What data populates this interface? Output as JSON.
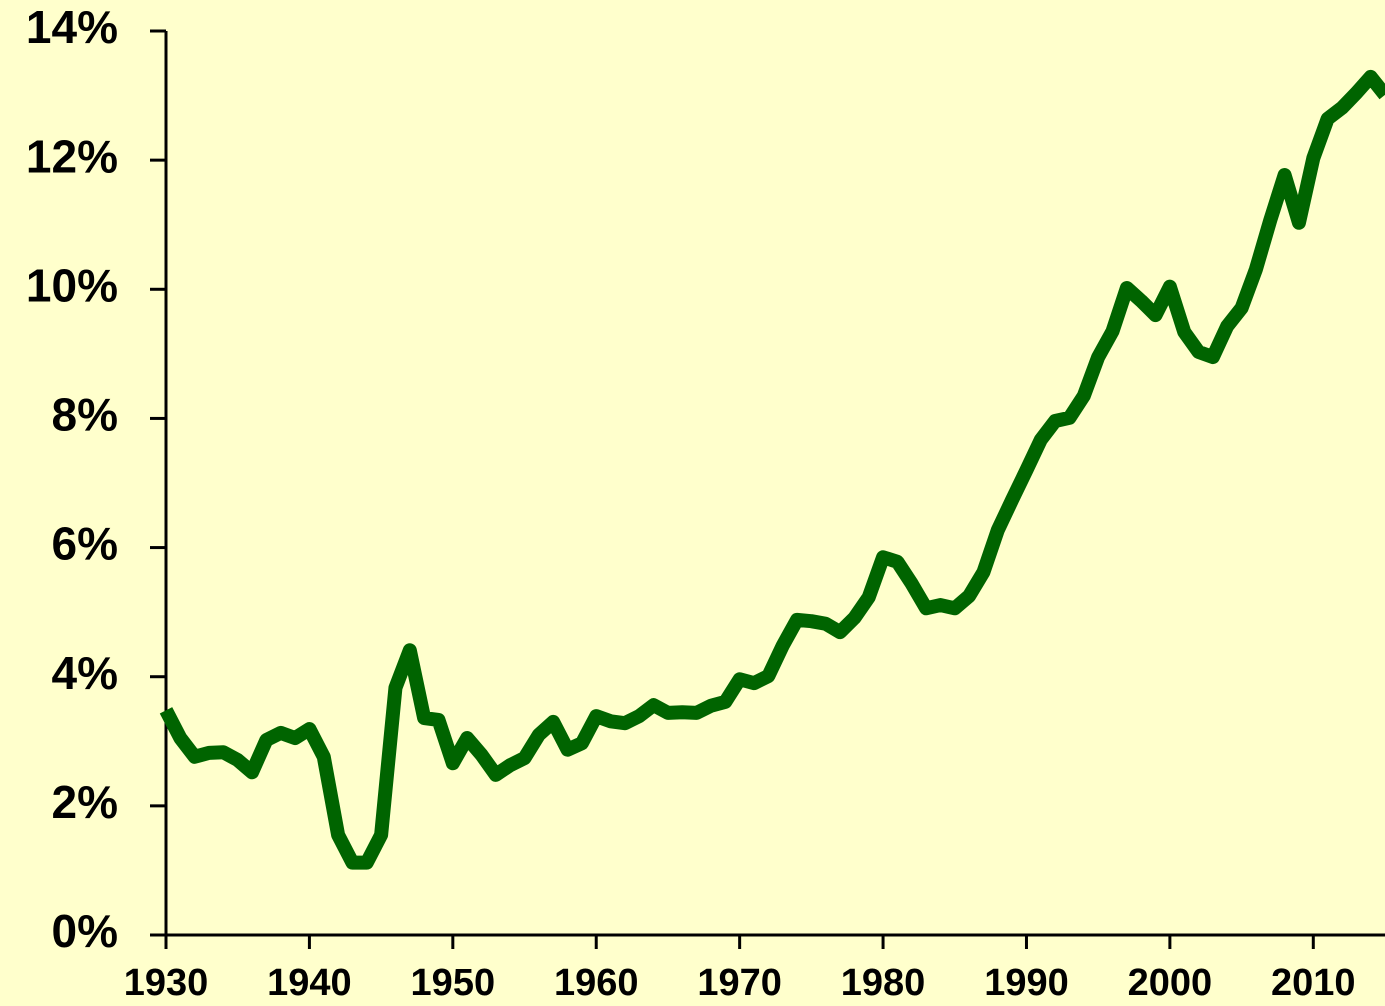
{
  "chart_data": {
    "type": "line",
    "x": [
      1930,
      1931,
      1932,
      1933,
      1934,
      1935,
      1936,
      1937,
      1938,
      1939,
      1940,
      1941,
      1942,
      1943,
      1944,
      1945,
      1946,
      1947,
      1948,
      1949,
      1950,
      1951,
      1952,
      1953,
      1954,
      1955,
      1956,
      1957,
      1958,
      1959,
      1960,
      1961,
      1962,
      1963,
      1964,
      1965,
      1966,
      1967,
      1968,
      1969,
      1970,
      1971,
      1972,
      1973,
      1974,
      1975,
      1976,
      1977,
      1978,
      1979,
      1980,
      1981,
      1982,
      1983,
      1984,
      1985,
      1986,
      1987,
      1988,
      1989,
      1990,
      1991,
      1992,
      1993,
      1994,
      1995,
      1996,
      1997,
      1998,
      1999,
      2000,
      2001,
      2002,
      2003,
      2004,
      2005,
      2006,
      2007,
      2008,
      2009,
      2010,
      2011,
      2012,
      2013,
      2014,
      2015
    ],
    "series": [
      {
        "color": "#006400",
        "values": [
          3.48,
          3.05,
          2.76,
          2.82,
          2.83,
          2.71,
          2.52,
          3.02,
          3.13,
          3.05,
          3.19,
          2.76,
          1.55,
          1.12,
          1.12,
          1.55,
          3.83,
          4.41,
          3.36,
          3.33,
          2.66,
          3.05,
          2.79,
          2.48,
          2.63,
          2.74,
          3.1,
          3.3,
          2.87,
          2.97,
          3.39,
          3.31,
          3.28,
          3.39,
          3.56,
          3.44,
          3.45,
          3.44,
          3.55,
          3.61,
          3.96,
          3.9,
          4.01,
          4.48,
          4.88,
          4.86,
          4.82,
          4.69,
          4.91,
          5.23,
          5.85,
          5.78,
          5.44,
          5.06,
          5.11,
          5.06,
          5.25,
          5.62,
          6.27,
          6.74,
          7.2,
          7.67,
          7.96,
          8.01,
          8.35,
          8.95,
          9.35,
          10.02,
          9.82,
          9.6,
          10.04,
          9.34,
          9.03,
          8.95,
          9.43,
          9.71,
          10.31,
          11.07,
          11.77,
          11.03,
          12.03,
          12.64,
          12.81,
          13.04,
          13.29,
          13.01
        ]
      }
    ],
    "xlim": [
      1930,
      2015
    ],
    "xticks": [
      1930,
      1940,
      1950,
      1960,
      1970,
      1980,
      1990,
      2000,
      2010
    ],
    "ylim": [
      0,
      14
    ],
    "yticks": [
      {
        "value": 0,
        "label": "0%"
      },
      {
        "value": 2,
        "label": "2%"
      },
      {
        "value": 4,
        "label": "4%"
      },
      {
        "value": 6,
        "label": "6%"
      },
      {
        "value": 8,
        "label": "8%"
      },
      {
        "value": 10,
        "label": "10%"
      },
      {
        "value": 12,
        "label": "12%"
      },
      {
        "value": 14,
        "label": "14%"
      }
    ],
    "background": "#ffffcc"
  }
}
